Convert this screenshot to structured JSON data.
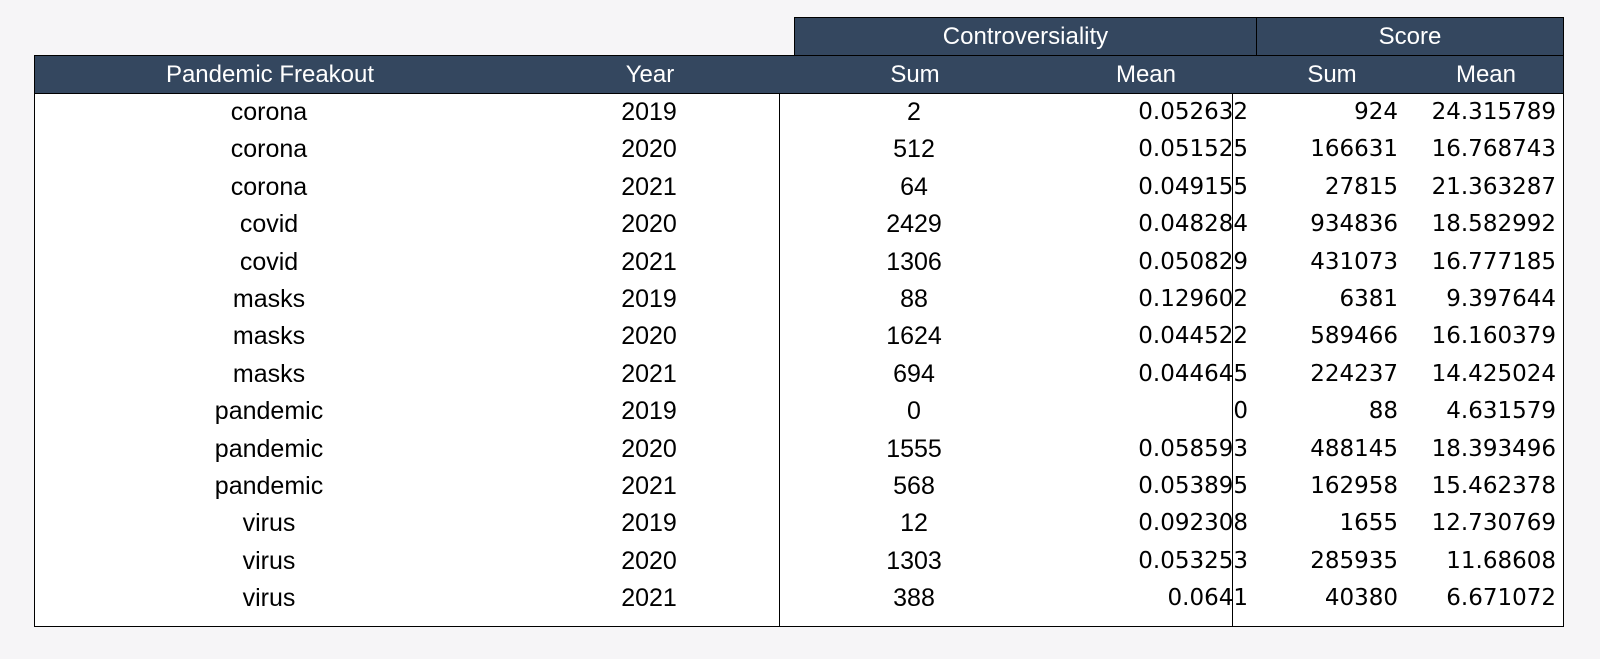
{
  "chart_data": {
    "type": "table",
    "group_headers": {
      "controversiality": "Controversiality",
      "score": "Score"
    },
    "columns": {
      "topic": "Pandemic Freakout",
      "year": "Year",
      "controv_sum": "Sum",
      "controv_mean": "Mean",
      "score_sum": "Sum",
      "score_mean": "Mean"
    },
    "rows": [
      {
        "topic": "corona",
        "year": "2019",
        "controv_sum": "2",
        "controv_mean": "0.052632",
        "score_sum": "924",
        "score_mean": "24.315789"
      },
      {
        "topic": "corona",
        "year": "2020",
        "controv_sum": "512",
        "controv_mean": "0.051525",
        "score_sum": "166631",
        "score_mean": "16.768743"
      },
      {
        "topic": "corona",
        "year": "2021",
        "controv_sum": "64",
        "controv_mean": "0.049155",
        "score_sum": "27815",
        "score_mean": "21.363287"
      },
      {
        "topic": "covid",
        "year": "2020",
        "controv_sum": "2429",
        "controv_mean": "0.048284",
        "score_sum": "934836",
        "score_mean": "18.582992"
      },
      {
        "topic": "covid",
        "year": "2021",
        "controv_sum": "1306",
        "controv_mean": "0.050829",
        "score_sum": "431073",
        "score_mean": "16.777185"
      },
      {
        "topic": "masks",
        "year": "2019",
        "controv_sum": "88",
        "controv_mean": "0.129602",
        "score_sum": "6381",
        "score_mean": "9.397644"
      },
      {
        "topic": "masks",
        "year": "2020",
        "controv_sum": "1624",
        "controv_mean": "0.044522",
        "score_sum": "589466",
        "score_mean": "16.160379"
      },
      {
        "topic": "masks",
        "year": "2021",
        "controv_sum": "694",
        "controv_mean": "0.044645",
        "score_sum": "224237",
        "score_mean": "14.425024"
      },
      {
        "topic": "pandemic",
        "year": "2019",
        "controv_sum": "0",
        "controv_mean": "0",
        "score_sum": "88",
        "score_mean": "4.631579"
      },
      {
        "topic": "pandemic",
        "year": "2020",
        "controv_sum": "1555",
        "controv_mean": "0.058593",
        "score_sum": "488145",
        "score_mean": "18.393496"
      },
      {
        "topic": "pandemic",
        "year": "2021",
        "controv_sum": "568",
        "controv_mean": "0.053895",
        "score_sum": "162958",
        "score_mean": "15.462378"
      },
      {
        "topic": "virus",
        "year": "2019",
        "controv_sum": "12",
        "controv_mean": "0.092308",
        "score_sum": "1655",
        "score_mean": "12.730769"
      },
      {
        "topic": "virus",
        "year": "2020",
        "controv_sum": "1303",
        "controv_mean": "0.053253",
        "score_sum": "285935",
        "score_mean": "11.68608"
      },
      {
        "topic": "virus",
        "year": "2021",
        "controv_sum": "388",
        "controv_mean": "0.0641",
        "score_sum": "40380",
        "score_mean": "6.671072"
      }
    ]
  },
  "colors": {
    "header_bg": "#34475f",
    "header_text": "#ffffff",
    "page_bg": "#f6f5f7",
    "body_bg": "#ffffff"
  }
}
